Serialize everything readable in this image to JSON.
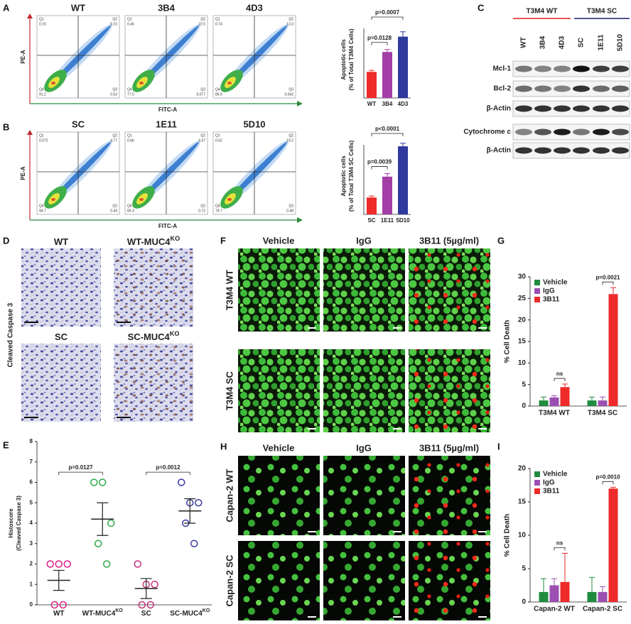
{
  "panel_letters": [
    "A",
    "B",
    "C",
    "D",
    "E",
    "F",
    "G",
    "H",
    "I"
  ],
  "quadrant_labels": [
    "Q1",
    "Q2",
    "Q3",
    "Q4"
  ],
  "flow": [
    {
      "x_axis": "FITC-A",
      "y_axis": "PE-A",
      "plots": [
        {
          "title": "WT",
          "q1": "0.15",
          "q2": "8.15",
          "q3": "0.53",
          "q4": "91.2"
        },
        {
          "title": "3B4",
          "q1": "0.46",
          "q2": "22.5",
          "q3": "0.077",
          "q4": "77.0"
        },
        {
          "title": "4D3",
          "q1": "0.74",
          "q2": "13.3",
          "q3": "0.042",
          "q4": "85.9"
        }
      ]
    },
    {
      "x_axis": "FITC-A",
      "y_axis": "PE-A",
      "plots": [
        {
          "title": "SC",
          "q1": "0.072",
          "q2": "4.77",
          "q3": "0.44",
          "q4": "94.7"
        },
        {
          "title": "1E11",
          "q1": "0.66",
          "q2": "9.37",
          "q3": "0.72",
          "q4": "89.3"
        },
        {
          "title": "5D10",
          "q1": "0.62",
          "q2": "19.2",
          "q3": "0.48",
          "q4": "79.7"
        }
      ]
    }
  ],
  "western": {
    "groups": [
      {
        "name": "T3M4 WT",
        "color": "#e31e24"
      },
      {
        "name": "T3M4 SC",
        "color": "#1b1f6b"
      }
    ],
    "lanes": [
      "WT",
      "3B4",
      "4D3",
      "SC",
      "1E11",
      "5D10"
    ],
    "rows": [
      "Mcl-1",
      "Bcl-2",
      "β-Actin",
      "Cytochrome c",
      "β-Actin"
    ]
  },
  "ihc": {
    "side_label": "Cleaved Caspase 3",
    "titles": [
      "WT",
      "WT-MUC4",
      "SC",
      "SC-MUC4"
    ],
    "title_superscripts": [
      null,
      "KO",
      null,
      "KO"
    ]
  },
  "fluor": [
    {
      "columns": [
        "Vehicle",
        "IgG",
        "3B11 (5µg/ml)"
      ],
      "rows": [
        "T3M4 WT",
        "T3M4 SC"
      ]
    },
    {
      "columns": [
        "Vehicle",
        "IgG",
        "3B11 (5µg/ml)"
      ],
      "rows": [
        "Capan-2 WT",
        "Capan-2 SC"
      ]
    }
  ],
  "chart_data": [
    {
      "type": "bar",
      "ylabel": [
        "Apoptotic cells",
        "(% of Total T3M4 Cells)"
      ],
      "categories": [
        "WT",
        "3B4",
        "4D3"
      ],
      "values": [
        8.5,
        15,
        20
      ],
      "errors": [
        0.5,
        0.8,
        1.6
      ],
      "colors": [
        "#ee2a2a",
        "#a33ea6",
        "#2e3a9e"
      ],
      "ylim": [
        0,
        25
      ],
      "annotations": [
        "p=0.0128",
        "p=0.0007"
      ]
    },
    {
      "type": "bar",
      "ylabel": [
        "Apoptotic cells",
        "(% of Total T3M4 SC Cells)"
      ],
      "categories": [
        "SC",
        "1E11",
        "5D10"
      ],
      "values": [
        5.5,
        12.3,
        22.2
      ],
      "errors": [
        0.5,
        1.0,
        1.0
      ],
      "colors": [
        "#ee2a2a",
        "#a33ea6",
        "#2e3a9e"
      ],
      "ylim": [
        0,
        25
      ],
      "annotations": [
        "p=0.0039",
        "p<0.0001"
      ]
    },
    {
      "type": "dot",
      "ylabel": [
        "Histoscore",
        "(Cleaved Caspase 3)"
      ],
      "categories": [
        "WT",
        "WT-MUC4",
        "SC",
        "SC-MUC4"
      ],
      "category_superscripts": [
        null,
        "KO",
        null,
        "KO"
      ],
      "points": [
        [
          2,
          2,
          2,
          0,
          0
        ],
        [
          6,
          6,
          4,
          3,
          2
        ],
        [
          2,
          1,
          1,
          0,
          0
        ],
        [
          6,
          5,
          5,
          4,
          3
        ]
      ],
      "means": [
        1.2,
        4.2,
        0.8,
        4.6
      ],
      "errors": [
        0.49,
        0.8,
        0.49,
        0.6
      ],
      "colors": [
        "#e0208a",
        "#2fa84a",
        "#c2307a",
        "#3a3aa0"
      ],
      "ylim": [
        0,
        8
      ],
      "yticks": [
        0,
        1,
        2,
        3,
        4,
        5,
        6,
        7,
        8
      ],
      "annotations": [
        "p=0.0127",
        "p=0.0012"
      ]
    },
    {
      "type": "grouped_bar",
      "ylabel": "% Cell Death",
      "categories": [
        "T3M4 WT",
        "T3M4 SC"
      ],
      "series": [
        {
          "name": "Vehicle",
          "color": "#1f8b3f",
          "values": [
            1.3,
            1.3
          ],
          "errors": [
            0.8,
            0.8
          ]
        },
        {
          "name": "IgG",
          "color": "#9b4fb0",
          "values": [
            2,
            1.3
          ],
          "errors": [
            0.4,
            0.8
          ]
        },
        {
          "name": "3B11",
          "color": "#ee2a2a",
          "values": [
            4.4,
            26
          ],
          "errors": [
            0.7,
            1.5
          ]
        }
      ],
      "ylim": [
        0,
        30
      ],
      "yticks": [
        0,
        5,
        10,
        15,
        20,
        25,
        30
      ],
      "legend": "upper left",
      "annotations": [
        "ns",
        "p=0.0021"
      ]
    },
    {
      "type": "grouped_bar",
      "ylabel": "% Cell Death",
      "categories": [
        "Capan-2 WT",
        "Capan-2 SC"
      ],
      "series": [
        {
          "name": "Vehicle",
          "color": "#1f8b3f",
          "values": [
            1.5,
            1.5
          ],
          "errors": [
            2,
            2.2
          ]
        },
        {
          "name": "IgG",
          "color": "#9b4fb0",
          "values": [
            2.5,
            1.5
          ],
          "errors": [
            1,
            0.8
          ]
        },
        {
          "name": "3B11",
          "color": "#ee2a2a",
          "values": [
            3,
            17
          ],
          "errors": [
            4.3,
            0.2
          ]
        }
      ],
      "ylim": [
        0,
        20
      ],
      "yticks": [
        0,
        5,
        10,
        15,
        20
      ],
      "legend": "upper left",
      "annotations": [
        "ns",
        "p=0.0010"
      ]
    }
  ]
}
